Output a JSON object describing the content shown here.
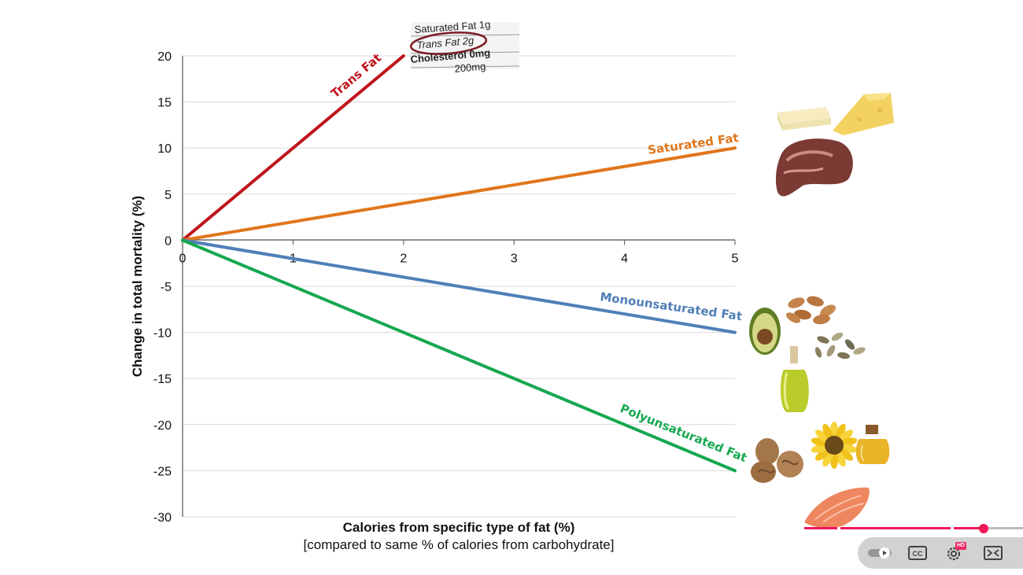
{
  "chart_data": {
    "type": "line",
    "title": "",
    "xlabel": "Calories from specific type of fat (%)",
    "xlabel_sub": "[compared to same % of calories from carbohydrate]",
    "ylabel": "Change in total mortality (%)",
    "xlim": [
      0,
      5
    ],
    "ylim": [
      -30,
      20
    ],
    "x_ticks": [
      "0",
      "1",
      "2",
      "3",
      "4",
      "5"
    ],
    "y_ticks": [
      "20",
      "15",
      "10",
      "5",
      "0",
      "-5",
      "-10",
      "-15",
      "-20",
      "-25",
      "-30"
    ],
    "grid": true,
    "series": [
      {
        "name": "Trans Fat",
        "color": "#c0141c",
        "x": [
          0,
          2
        ],
        "y": [
          0,
          20
        ]
      },
      {
        "name": "Saturated Fat",
        "color": "#e0761b",
        "x": [
          0,
          5
        ],
        "y": [
          0,
          10
        ]
      },
      {
        "name": "Monounsaturated Fat",
        "color": "#4f7fb8",
        "x": [
          0,
          5
        ],
        "y": [
          0,
          -10
        ]
      },
      {
        "name": "Polyunsaturated Fat",
        "color": "#16a84f",
        "x": [
          0,
          5
        ],
        "y": [
          0,
          -25
        ]
      }
    ]
  },
  "nutrition_label": {
    "line1": "Saturated Fat 1g",
    "line2": "Trans Fat 2g",
    "line3": "Cholesterol 0mg",
    "line4": "200mg"
  },
  "food_images": {
    "saturated": [
      "butter-icon",
      "cheese-icon",
      "meat-icon"
    ],
    "monounsaturated": [
      "avocado-icon",
      "almonds-icon",
      "seeds-icon",
      "olive-oil-icon"
    ],
    "polyunsaturated": [
      "walnuts-icon",
      "sunflower-icon",
      "oil-bottle-icon",
      "salmon-icon"
    ]
  },
  "player": {
    "progress_fraction": 0.72,
    "cc_label": "CC",
    "hd_label": "HD"
  }
}
